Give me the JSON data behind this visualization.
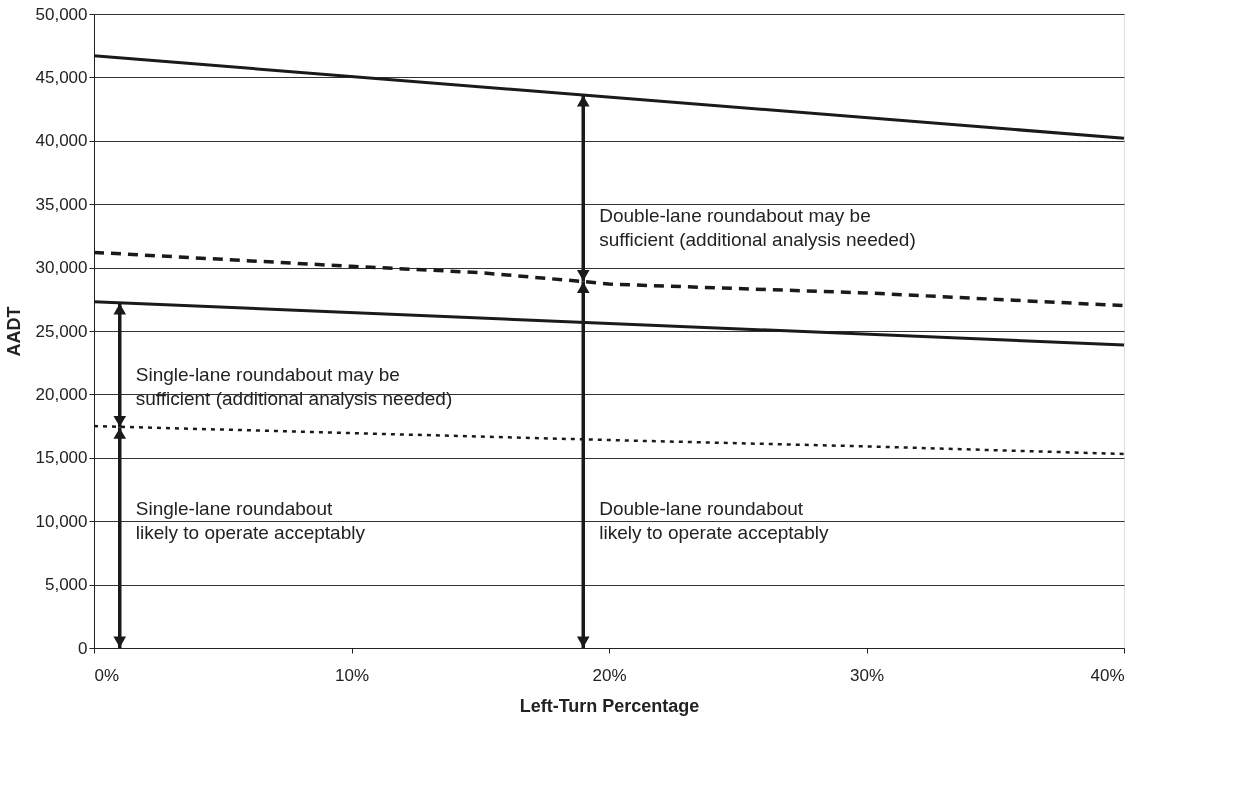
{
  "chart_data": {
    "type": "line",
    "xlabel": "Left-Turn Percentage",
    "ylabel": "AADT",
    "xlim": [
      0,
      40
    ],
    "xticks": [
      {
        "value": 0,
        "label": "0%"
      },
      {
        "value": 10,
        "label": "10%"
      },
      {
        "value": 20,
        "label": "20%"
      },
      {
        "value": 30,
        "label": "30%"
      },
      {
        "value": 40,
        "label": "40%"
      }
    ],
    "ylim": [
      0,
      50000
    ],
    "yticks": [
      {
        "value": 0,
        "label": "0"
      },
      {
        "value": 5000,
        "label": "5,000"
      },
      {
        "value": 10000,
        "label": "10,000"
      },
      {
        "value": 15000,
        "label": "15,000"
      },
      {
        "value": 20000,
        "label": "20,000"
      },
      {
        "value": 25000,
        "label": "25,000"
      },
      {
        "value": 30000,
        "label": "30,000"
      },
      {
        "value": 35000,
        "label": "35,000"
      },
      {
        "value": 40000,
        "label": "40,000"
      },
      {
        "value": 45000,
        "label": "45,000"
      },
      {
        "value": 50000,
        "label": "50,000"
      }
    ],
    "grid": "y",
    "marker": "none",
    "series": [
      {
        "color": "#1a1a1a",
        "line_style": "solid",
        "x": [
          0,
          40
        ],
        "values": [
          46700,
          40200
        ]
      },
      {
        "color": "#1a1a1a",
        "line_style": "dashed",
        "x": [
          0,
          10,
          15,
          19,
          20,
          30,
          40
        ],
        "values": [
          31200,
          30100,
          29600,
          28900,
          28700,
          28000,
          27000
        ]
      },
      {
        "color": "#1a1a1a",
        "line_style": "solid",
        "x": [
          0,
          40
        ],
        "values": [
          27300,
          23900
        ]
      },
      {
        "color": "#1a1a1a",
        "line_style": "dotted",
        "x": [
          0,
          20,
          30,
          40
        ],
        "values": [
          17500,
          16400,
          15900,
          15300
        ]
      }
    ],
    "annotations": [
      {
        "text": "Double-lane roundabout may be\nsufficient (additional analysis needed)",
        "x": 19,
        "y": 28900
      },
      {
        "text": "Single-lane roundabout may be\nsufficient (additional analysis needed)",
        "x": 1,
        "y": 17400
      },
      "Single-lane roundabout\nlikely to operate acceptably",
      "Double-lane roundabout\nlikely to operate acceptably"
    ]
  }
}
